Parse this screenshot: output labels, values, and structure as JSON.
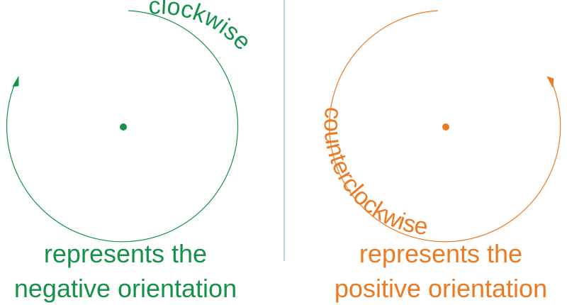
{
  "colors": {
    "clockwise": "#15914a",
    "counterclockwise": "#ec7a23",
    "divider": "#7fb9bf"
  },
  "left_panel": {
    "direction": "clockwise",
    "arc_label": "clockwise",
    "caption_line1": "represents the",
    "caption_line2": "negative orientation"
  },
  "right_panel": {
    "direction": "counterclockwise",
    "arc_label": "counterclockwise",
    "caption_line1": "represents the",
    "caption_line2": "positive orientation"
  },
  "icons": {
    "left_arrow": "arrowhead-icon",
    "right_arrow": "arrowhead-icon"
  }
}
